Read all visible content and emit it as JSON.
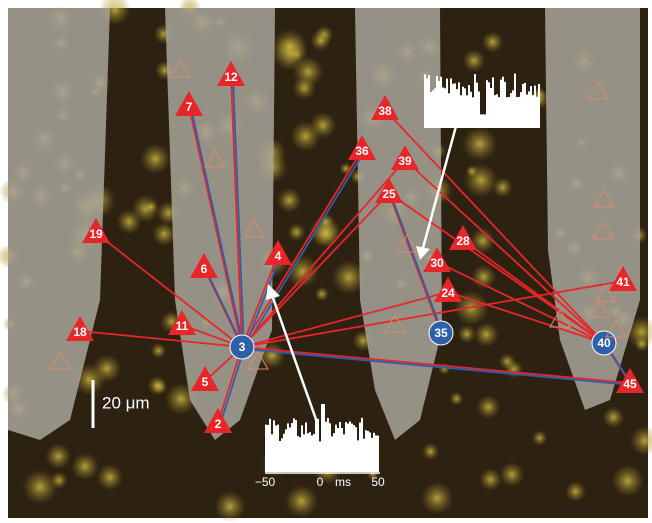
{
  "nodes": [
    {
      "label": "3"
    },
    {
      "label": "35"
    },
    {
      "label": "40"
    },
    {
      "label": "12"
    },
    {
      "label": "7"
    },
    {
      "label": "38"
    },
    {
      "label": "36"
    },
    {
      "label": "39"
    },
    {
      "label": "25"
    },
    {
      "label": "19"
    },
    {
      "label": "6"
    },
    {
      "label": "4"
    },
    {
      "label": "28"
    },
    {
      "label": "30"
    },
    {
      "label": "24"
    },
    {
      "label": "41"
    },
    {
      "label": "11"
    },
    {
      "label": "18"
    },
    {
      "label": "5"
    },
    {
      "label": "2"
    },
    {
      "label": "45"
    }
  ],
  "scale_bar": {
    "label": "20 μm"
  },
  "histogram": {
    "axis_labels": [
      "−50",
      "0",
      "ms",
      "50"
    ]
  }
}
